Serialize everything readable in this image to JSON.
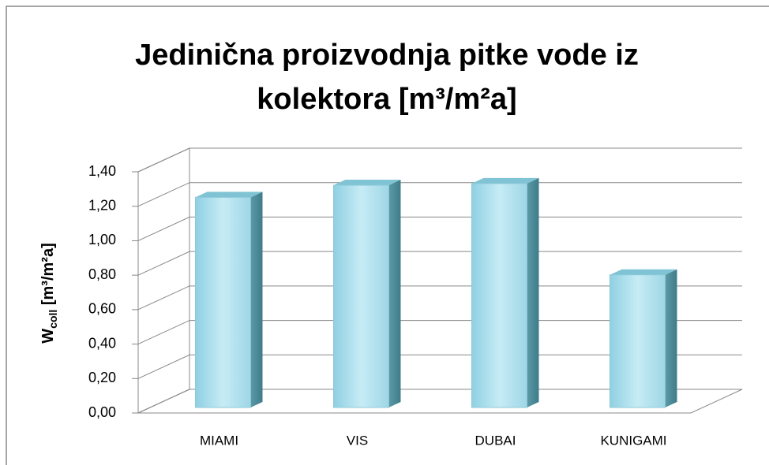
{
  "chart_data": {
    "type": "bar3d",
    "title_lines": [
      "Jedinična proizvodnja pitke vode iz",
      "kolektora [m³/m²a]"
    ],
    "y_label": {
      "main": "W",
      "sub": "coll",
      "rest": " [m³/m²a]"
    },
    "categories": [
      "MIAMI",
      "VIS",
      "DUBAI",
      "KUNIGAMI"
    ],
    "values": [
      1.22,
      1.29,
      1.3,
      0.77
    ],
    "color": "#a8dcea",
    "ylim": [
      0,
      1.4
    ],
    "yticks": [
      {
        "value": 0,
        "label": "0,00"
      },
      {
        "value": 0.2,
        "label": "0,20"
      },
      {
        "value": 0.4,
        "label": "0,40"
      },
      {
        "value": 0.6,
        "label": "0,60"
      },
      {
        "value": 0.8,
        "label": "0,80"
      },
      {
        "value": 1.0,
        "label": "1,00"
      },
      {
        "value": 1.2,
        "label": "1,20"
      },
      {
        "value": 1.4,
        "label": "1,40"
      }
    ],
    "grid": true
  }
}
